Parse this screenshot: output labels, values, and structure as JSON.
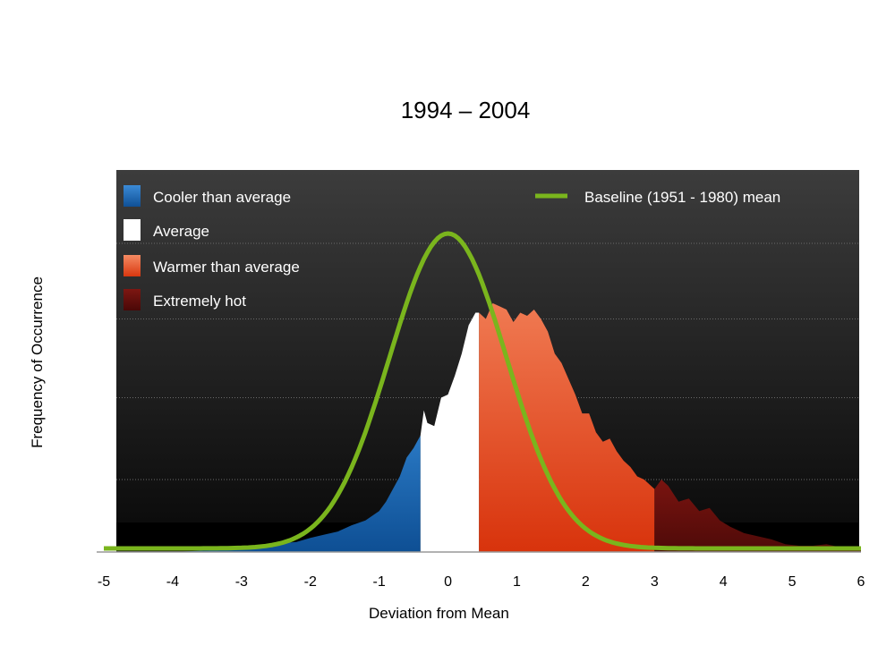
{
  "chart_data": {
    "type": "area",
    "title": "1994 – 2004",
    "xlabel": "Deviation from Mean",
    "ylabel": "Frequency of Occurrence",
    "xlim": [
      -5,
      6
    ],
    "x_ticks": [
      "-5",
      "-4",
      "-3",
      "-2",
      "-1",
      "0",
      "1",
      "2",
      "3",
      "4",
      "5",
      "6"
    ],
    "ylim": [
      0,
      1
    ],
    "legend_placement": "top",
    "y_grid": true,
    "series": [
      {
        "name": "Cooler than average",
        "color": "#1a66b0",
        "x_range": [
          -5,
          -0.4
        ],
        "points": [
          [
            -5,
            0.0
          ],
          [
            -4,
            0.0
          ],
          [
            -3.5,
            0.005
          ],
          [
            -3.2,
            0.01
          ],
          [
            -3.0,
            0.012
          ],
          [
            -2.8,
            0.015
          ],
          [
            -2.6,
            0.02
          ],
          [
            -2.4,
            0.028
          ],
          [
            -2.2,
            0.032
          ],
          [
            -2.0,
            0.045
          ],
          [
            -1.8,
            0.055
          ],
          [
            -1.6,
            0.065
          ],
          [
            -1.4,
            0.085
          ],
          [
            -1.2,
            0.1
          ],
          [
            -1.0,
            0.13
          ],
          [
            -0.9,
            0.16
          ],
          [
            -0.8,
            0.2
          ],
          [
            -0.7,
            0.24
          ],
          [
            -0.6,
            0.3
          ],
          [
            -0.5,
            0.33
          ],
          [
            -0.4,
            0.37
          ]
        ]
      },
      {
        "name": "Average",
        "color": "#ffffff",
        "x_range": [
          -0.4,
          0.45
        ],
        "points": [
          [
            -0.4,
            0.37
          ],
          [
            -0.35,
            0.45
          ],
          [
            -0.3,
            0.41
          ],
          [
            -0.2,
            0.4
          ],
          [
            -0.1,
            0.49
          ],
          [
            0.0,
            0.5
          ],
          [
            0.1,
            0.56
          ],
          [
            0.2,
            0.63
          ],
          [
            0.3,
            0.72
          ],
          [
            0.4,
            0.76
          ],
          [
            0.45,
            0.76
          ]
        ]
      },
      {
        "name": "Warmer than average",
        "color": "#e8502a",
        "x_range": [
          0.45,
          3.0
        ],
        "points": [
          [
            0.45,
            0.76
          ],
          [
            0.55,
            0.74
          ],
          [
            0.65,
            0.79
          ],
          [
            0.75,
            0.78
          ],
          [
            0.85,
            0.77
          ],
          [
            0.95,
            0.73
          ],
          [
            1.05,
            0.76
          ],
          [
            1.15,
            0.75
          ],
          [
            1.25,
            0.77
          ],
          [
            1.35,
            0.74
          ],
          [
            1.45,
            0.7
          ],
          [
            1.55,
            0.63
          ],
          [
            1.65,
            0.6
          ],
          [
            1.75,
            0.55
          ],
          [
            1.85,
            0.5
          ],
          [
            1.95,
            0.44
          ],
          [
            2.05,
            0.44
          ],
          [
            2.15,
            0.38
          ],
          [
            2.25,
            0.35
          ],
          [
            2.35,
            0.36
          ],
          [
            2.45,
            0.32
          ],
          [
            2.55,
            0.29
          ],
          [
            2.65,
            0.27
          ],
          [
            2.75,
            0.24
          ],
          [
            2.85,
            0.23
          ],
          [
            3.0,
            0.2
          ]
        ]
      },
      {
        "name": "Extremely hot",
        "color": "#6b0d0d",
        "x_range": [
          3.0,
          6.0
        ],
        "points": [
          [
            3.0,
            0.2
          ],
          [
            3.1,
            0.23
          ],
          [
            3.2,
            0.21
          ],
          [
            3.35,
            0.16
          ],
          [
            3.5,
            0.17
          ],
          [
            3.65,
            0.13
          ],
          [
            3.8,
            0.14
          ],
          [
            3.95,
            0.1
          ],
          [
            4.1,
            0.08
          ],
          [
            4.3,
            0.06
          ],
          [
            4.5,
            0.05
          ],
          [
            4.7,
            0.04
          ],
          [
            4.9,
            0.025
          ],
          [
            5.1,
            0.02
          ],
          [
            5.3,
            0.02
          ],
          [
            5.5,
            0.025
          ],
          [
            5.7,
            0.015
          ],
          [
            5.85,
            0.01
          ],
          [
            6.0,
            0.005
          ]
        ]
      },
      {
        "name": "Baseline (1951 - 1980) mean",
        "color": "#7ab51d",
        "kind": "line",
        "shape": "normal",
        "mean": 0,
        "sd": 0.85,
        "peak": 1.0,
        "x_range": [
          -5,
          6
        ]
      }
    ]
  }
}
